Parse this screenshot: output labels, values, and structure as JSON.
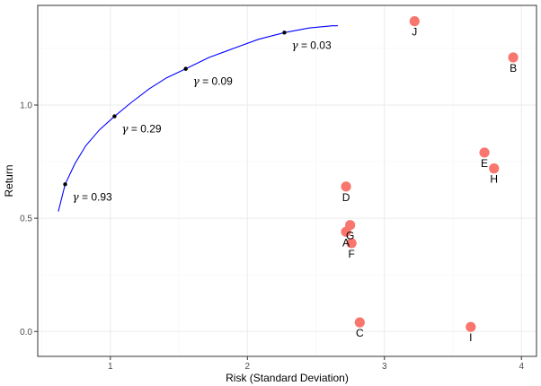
{
  "chart_data": {
    "type": "scatter",
    "title": "",
    "xlabel": "Risk (Standard Deviation)",
    "ylabel": "Return",
    "xlim": [
      0.47,
      4.11
    ],
    "ylim": [
      -0.11,
      1.44
    ],
    "x_ticks": [
      {
        "value": 1,
        "label": "1"
      },
      {
        "value": 2,
        "label": "2"
      },
      {
        "value": 3,
        "label": "3"
      },
      {
        "value": 4,
        "label": "4"
      }
    ],
    "y_ticks": [
      {
        "value": 0.0,
        "label": "0.0"
      },
      {
        "value": 0.5,
        "label": "0.5"
      },
      {
        "value": 1.0,
        "label": "1.0"
      }
    ],
    "grid": true,
    "colors": {
      "points": "#f8766d",
      "frontier": "#0000ff",
      "frontier_markers": "#000000",
      "panel_border": "#333333",
      "grid_major": "#ebebeb",
      "grid_minor": "#f5f5f5"
    },
    "series": [
      {
        "type": "scatter",
        "points": [
          {
            "label": "A",
            "x": 2.72,
            "y": 0.44
          },
          {
            "label": "B",
            "x": 3.94,
            "y": 1.21
          },
          {
            "label": "C",
            "x": 2.82,
            "y": 0.04
          },
          {
            "label": "D",
            "x": 2.72,
            "y": 0.64
          },
          {
            "label": "E",
            "x": 3.73,
            "y": 0.79
          },
          {
            "label": "F",
            "x": 2.76,
            "y": 0.39
          },
          {
            "label": "G",
            "x": 2.75,
            "y": 0.47
          },
          {
            "label": "H",
            "x": 3.8,
            "y": 0.72
          },
          {
            "label": "I",
            "x": 3.63,
            "y": 0.02
          },
          {
            "label": "J",
            "x": 3.22,
            "y": 1.37
          }
        ]
      },
      {
        "type": "line",
        "x": [
          0.62,
          0.67,
          0.74,
          0.82,
          0.92,
          1.03,
          1.15,
          1.28,
          1.41,
          1.55,
          1.72,
          1.9,
          2.08,
          2.27,
          2.45,
          2.62,
          2.66
        ],
        "y": [
          0.53,
          0.65,
          0.74,
          0.82,
          0.89,
          0.95,
          1.01,
          1.07,
          1.12,
          1.16,
          1.21,
          1.25,
          1.29,
          1.32,
          1.34,
          1.35,
          1.35
        ]
      },
      {
        "type": "scatter",
        "points": [
          {
            "label": "0.93",
            "x": 0.67,
            "y": 0.65
          },
          {
            "label": "0.29",
            "x": 1.03,
            "y": 0.95
          },
          {
            "label": "0.09",
            "x": 1.55,
            "y": 1.16
          },
          {
            "label": "0.03",
            "x": 2.27,
            "y": 1.32
          }
        ]
      }
    ]
  }
}
